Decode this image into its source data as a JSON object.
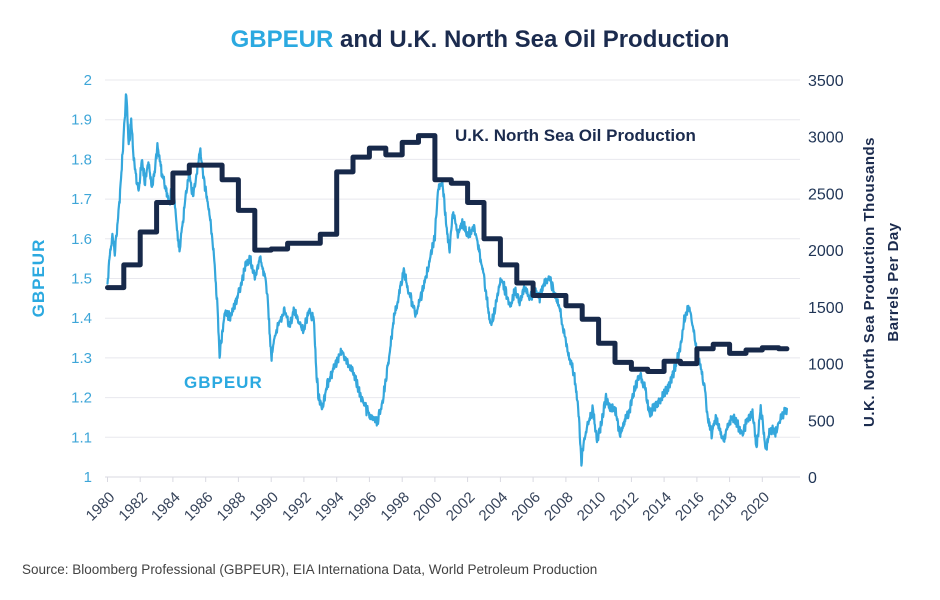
{
  "title": {
    "highlight": "GBPEUR",
    "rest": " and U.K. North Sea Oil Production"
  },
  "source_line": "Source: Bloomberg Professional (GBPEUR), EIA Internationa Data, World Petroleum Production",
  "colors": {
    "cyan_series": "#35a7dc",
    "navy_series": "#17294a",
    "grid": "#e8e8ee",
    "axis_line": "#d9d9e1"
  },
  "chart_data": {
    "type": "line",
    "title": "GBPEUR and U.K. North Sea Oil Production",
    "grid": "horizontal",
    "legend_position": "none",
    "x_axis": {
      "min": 1979.85,
      "max": 2022.3,
      "ticks": [
        1980,
        1982,
        1984,
        1986,
        1988,
        1990,
        1992,
        1994,
        1996,
        1998,
        2000,
        2002,
        2004,
        2006,
        2008,
        2010,
        2012,
        2014,
        2016,
        2018,
        2020
      ]
    },
    "left_axis": {
      "label": "GBPEUR",
      "min": 1,
      "max": 2,
      "ticks": [
        2,
        1.9,
        1.8,
        1.7,
        1.6,
        1.5,
        1.4,
        1.3,
        1.2,
        1.1,
        1
      ]
    },
    "right_axis": {
      "label_lines": [
        "U.K. North Sea Production Thousands",
        "Barrels Per Day"
      ],
      "min": 0,
      "max": 3500,
      "ticks": [
        3500,
        3000,
        2500,
        2000,
        1500,
        1000,
        500,
        0
      ]
    },
    "annotations": [
      {
        "id": "oil",
        "text": "U.K. North Sea Oil Production",
        "color": "#1b2b4e"
      },
      {
        "id": "gbp",
        "text": "GBPEUR",
        "color": "#2ba9e0"
      }
    ],
    "series": [
      {
        "name": "GBPEUR",
        "axis": "left",
        "style": "jagged-line",
        "color": "#35a7dc",
        "stroke_width": 2.2,
        "noise_amplitude": 0.013,
        "points": [
          [
            1980.0,
            1.48
          ],
          [
            1980.15,
            1.56
          ],
          [
            1980.3,
            1.61
          ],
          [
            1980.45,
            1.57
          ],
          [
            1980.6,
            1.63
          ],
          [
            1980.75,
            1.7
          ],
          [
            1980.9,
            1.8
          ],
          [
            1981.05,
            1.9
          ],
          [
            1981.15,
            1.97
          ],
          [
            1981.3,
            1.83
          ],
          [
            1981.45,
            1.9
          ],
          [
            1981.6,
            1.8
          ],
          [
            1981.75,
            1.76
          ],
          [
            1981.9,
            1.72
          ],
          [
            1982.1,
            1.8
          ],
          [
            1982.3,
            1.74
          ],
          [
            1982.5,
            1.79
          ],
          [
            1982.7,
            1.73
          ],
          [
            1982.9,
            1.77
          ],
          [
            1983.05,
            1.84
          ],
          [
            1983.3,
            1.77
          ],
          [
            1983.55,
            1.73
          ],
          [
            1983.8,
            1.69
          ],
          [
            1984.0,
            1.75
          ],
          [
            1984.2,
            1.64
          ],
          [
            1984.4,
            1.57
          ],
          [
            1984.6,
            1.64
          ],
          [
            1984.8,
            1.71
          ],
          [
            1985.0,
            1.77
          ],
          [
            1985.2,
            1.71
          ],
          [
            1985.45,
            1.76
          ],
          [
            1985.65,
            1.83
          ],
          [
            1985.85,
            1.76
          ],
          [
            1986.05,
            1.71
          ],
          [
            1986.3,
            1.64
          ],
          [
            1986.5,
            1.56
          ],
          [
            1986.7,
            1.44
          ],
          [
            1986.85,
            1.31
          ],
          [
            1987.0,
            1.36
          ],
          [
            1987.2,
            1.42
          ],
          [
            1987.5,
            1.4
          ],
          [
            1987.8,
            1.44
          ],
          [
            1988.1,
            1.47
          ],
          [
            1988.4,
            1.53
          ],
          [
            1988.7,
            1.55
          ],
          [
            1989.0,
            1.5
          ],
          [
            1989.3,
            1.55
          ],
          [
            1989.6,
            1.51
          ],
          [
            1989.8,
            1.44
          ],
          [
            1990.0,
            1.3
          ],
          [
            1990.2,
            1.35
          ],
          [
            1990.5,
            1.39
          ],
          [
            1990.8,
            1.42
          ],
          [
            1991.1,
            1.38
          ],
          [
            1991.4,
            1.42
          ],
          [
            1991.7,
            1.39
          ],
          [
            1992.0,
            1.37
          ],
          [
            1992.3,
            1.42
          ],
          [
            1992.6,
            1.4
          ],
          [
            1992.75,
            1.27
          ],
          [
            1992.9,
            1.2
          ],
          [
            1993.1,
            1.17
          ],
          [
            1993.4,
            1.23
          ],
          [
            1993.7,
            1.26
          ],
          [
            1994.0,
            1.29
          ],
          [
            1994.3,
            1.32
          ],
          [
            1994.7,
            1.28
          ],
          [
            1995.0,
            1.27
          ],
          [
            1995.4,
            1.21
          ],
          [
            1995.8,
            1.17
          ],
          [
            1996.1,
            1.15
          ],
          [
            1996.5,
            1.14
          ],
          [
            1996.8,
            1.19
          ],
          [
            1997.1,
            1.27
          ],
          [
            1997.5,
            1.4
          ],
          [
            1997.9,
            1.48
          ],
          [
            1998.1,
            1.52
          ],
          [
            1998.45,
            1.46
          ],
          [
            1998.8,
            1.41
          ],
          [
            1999.2,
            1.46
          ],
          [
            1999.6,
            1.53
          ],
          [
            2000.0,
            1.61
          ],
          [
            2000.2,
            1.72
          ],
          [
            2000.45,
            1.75
          ],
          [
            2000.7,
            1.63
          ],
          [
            2000.9,
            1.57
          ],
          [
            2001.1,
            1.67
          ],
          [
            2001.4,
            1.61
          ],
          [
            2001.7,
            1.64
          ],
          [
            2002.0,
            1.61
          ],
          [
            2002.4,
            1.63
          ],
          [
            2002.7,
            1.57
          ],
          [
            2003.0,
            1.5
          ],
          [
            2003.4,
            1.38
          ],
          [
            2003.7,
            1.43
          ],
          [
            2004.0,
            1.5
          ],
          [
            2004.3,
            1.47
          ],
          [
            2004.6,
            1.43
          ],
          [
            2004.9,
            1.47
          ],
          [
            2005.2,
            1.44
          ],
          [
            2005.5,
            1.48
          ],
          [
            2005.8,
            1.45
          ],
          [
            2006.1,
            1.47
          ],
          [
            2006.4,
            1.45
          ],
          [
            2006.7,
            1.49
          ],
          [
            2007.0,
            1.5
          ],
          [
            2007.3,
            1.46
          ],
          [
            2007.6,
            1.43
          ],
          [
            2007.9,
            1.36
          ],
          [
            2008.2,
            1.3
          ],
          [
            2008.5,
            1.26
          ],
          [
            2008.75,
            1.18
          ],
          [
            2008.95,
            1.04
          ],
          [
            2009.15,
            1.1
          ],
          [
            2009.4,
            1.14
          ],
          [
            2009.65,
            1.17
          ],
          [
            2009.9,
            1.09
          ],
          [
            2010.15,
            1.13
          ],
          [
            2010.45,
            1.2
          ],
          [
            2010.75,
            1.17
          ],
          [
            2011.0,
            1.17
          ],
          [
            2011.3,
            1.11
          ],
          [
            2011.6,
            1.14
          ],
          [
            2011.9,
            1.17
          ],
          [
            2012.2,
            1.22
          ],
          [
            2012.5,
            1.26
          ],
          [
            2012.8,
            1.23
          ],
          [
            2013.1,
            1.16
          ],
          [
            2013.5,
            1.18
          ],
          [
            2013.9,
            1.2
          ],
          [
            2014.3,
            1.23
          ],
          [
            2014.7,
            1.28
          ],
          [
            2015.0,
            1.33
          ],
          [
            2015.25,
            1.4
          ],
          [
            2015.5,
            1.43
          ],
          [
            2015.75,
            1.38
          ],
          [
            2016.0,
            1.31
          ],
          [
            2016.25,
            1.27
          ],
          [
            2016.5,
            1.22
          ],
          [
            2016.65,
            1.15
          ],
          [
            2016.9,
            1.11
          ],
          [
            2017.15,
            1.15
          ],
          [
            2017.4,
            1.12
          ],
          [
            2017.65,
            1.09
          ],
          [
            2017.9,
            1.13
          ],
          [
            2018.2,
            1.15
          ],
          [
            2018.5,
            1.13
          ],
          [
            2018.8,
            1.11
          ],
          [
            2019.1,
            1.15
          ],
          [
            2019.4,
            1.16
          ],
          [
            2019.65,
            1.07
          ],
          [
            2019.9,
            1.18
          ],
          [
            2020.2,
            1.07
          ],
          [
            2020.5,
            1.12
          ],
          [
            2020.8,
            1.11
          ],
          [
            2021.1,
            1.15
          ],
          [
            2021.5,
            1.17
          ]
        ]
      },
      {
        "name": "U.K. North Sea Oil Production",
        "axis": "right",
        "style": "step",
        "color": "#17294a",
        "stroke_width": 5,
        "end_x": 2021.5,
        "points": [
          [
            1980,
            1670
          ],
          [
            1981,
            1870
          ],
          [
            1982,
            2160
          ],
          [
            1983,
            2420
          ],
          [
            1984,
            2680
          ],
          [
            1985,
            2750
          ],
          [
            1986,
            2750
          ],
          [
            1987,
            2620
          ],
          [
            1988,
            2350
          ],
          [
            1989,
            2000
          ],
          [
            1990,
            2010
          ],
          [
            1991,
            2060
          ],
          [
            1992,
            2060
          ],
          [
            1993,
            2140
          ],
          [
            1994,
            2690
          ],
          [
            1995,
            2820
          ],
          [
            1996,
            2900
          ],
          [
            1997,
            2840
          ],
          [
            1998,
            2950
          ],
          [
            1999,
            3010
          ],
          [
            2000,
            2620
          ],
          [
            2001,
            2590
          ],
          [
            2002,
            2420
          ],
          [
            2003,
            2100
          ],
          [
            2004,
            1870
          ],
          [
            2005,
            1710
          ],
          [
            2006,
            1600
          ],
          [
            2007,
            1600
          ],
          [
            2008,
            1510
          ],
          [
            2009,
            1390
          ],
          [
            2010,
            1180
          ],
          [
            2011,
            1010
          ],
          [
            2012,
            950
          ],
          [
            2013,
            930
          ],
          [
            2014,
            1020
          ],
          [
            2015,
            1000
          ],
          [
            2016,
            1130
          ],
          [
            2017,
            1170
          ],
          [
            2018,
            1090
          ],
          [
            2019,
            1120
          ],
          [
            2020,
            1140
          ],
          [
            2021,
            1130
          ]
        ]
      }
    ]
  }
}
